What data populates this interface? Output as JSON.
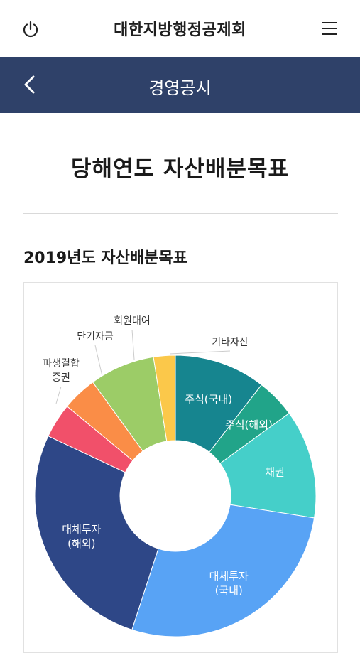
{
  "header": {
    "app_title": "대한지방행정공제회",
    "power_icon": "power-icon",
    "menu_icon": "hamburger-menu-icon"
  },
  "navbar": {
    "title": "경영공시",
    "back_icon": "chevron-left-icon",
    "background": "#2f4169"
  },
  "page": {
    "title": "당해연도 자산배분목표",
    "section_title": "2019년도 자산배분목표"
  },
  "chart_data": {
    "type": "pie",
    "title": "",
    "donut": true,
    "slices": [
      {
        "label": "주식(국내)",
        "value": 10.5,
        "color": "#16858f",
        "label_position": "inside"
      },
      {
        "label": "주식(해외)",
        "value": 4.5,
        "color": "#21a489",
        "label_position": "inside"
      },
      {
        "label": "채권",
        "value": 12.5,
        "color": "#45cfc9",
        "label_position": "inside"
      },
      {
        "label": "대체투자\n(국내)",
        "value": 27.5,
        "color": "#58a3f5",
        "label_position": "inside"
      },
      {
        "label": "대체투자\n(해외)",
        "value": 27.0,
        "color": "#2e4787",
        "label_position": "inside"
      },
      {
        "label": "파생결합\n증권",
        "value": 4.0,
        "color": "#f1506a",
        "label_position": "outside"
      },
      {
        "label": "단기자금",
        "value": 4.0,
        "color": "#fa8d47",
        "label_position": "outside"
      },
      {
        "label": "회원대여",
        "value": 7.5,
        "color": "#9ccc67",
        "label_position": "outside"
      },
      {
        "label": "기타자산",
        "value": 2.5,
        "color": "#fbc84a",
        "label_position": "outside"
      }
    ]
  }
}
